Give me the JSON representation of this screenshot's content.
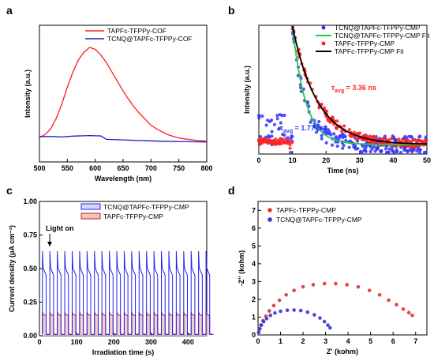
{
  "chart_data": [
    {
      "panel": "a",
      "type": "line",
      "xlabel": "Wavelength (nm)",
      "ylabel": "Intensity (a.u.)",
      "xlim": [
        500,
        800
      ],
      "xticks": [
        "500",
        "550",
        "600",
        "650",
        "700",
        "750",
        "800"
      ],
      "legend_position": "top-right",
      "series": [
        {
          "name": "TAPFc-TFPPy-COF",
          "color": "#ff1a1a",
          "x": [
            500,
            510,
            520,
            530,
            540,
            550,
            560,
            570,
            580,
            590,
            600,
            610,
            620,
            630,
            640,
            650,
            660,
            670,
            680,
            690,
            700,
            710,
            720,
            730,
            740,
            750,
            760,
            770,
            780,
            790,
            800
          ],
          "y": [
            0.05,
            0.08,
            0.14,
            0.25,
            0.4,
            0.58,
            0.74,
            0.87,
            0.95,
            1.0,
            0.98,
            0.92,
            0.84,
            0.74,
            0.64,
            0.54,
            0.45,
            0.37,
            0.3,
            0.24,
            0.18,
            0.14,
            0.11,
            0.08,
            0.06,
            0.045,
            0.035,
            0.028,
            0.02,
            0.015,
            0.01
          ]
        },
        {
          "name": "TCNQ@TAPFc-TFPPy-COF",
          "color": "#1a1acc",
          "x": [
            500,
            510,
            520,
            530,
            540,
            550,
            560,
            570,
            580,
            590,
            600,
            610,
            620,
            630,
            640,
            650,
            660,
            670,
            680,
            690,
            700,
            710,
            720,
            730,
            740,
            750,
            760,
            770,
            780,
            790,
            800
          ],
          "y": [
            0.06,
            0.06,
            0.06,
            0.058,
            0.055,
            0.06,
            0.064,
            0.066,
            0.068,
            0.07,
            0.068,
            0.066,
            0.03,
            0.028,
            0.026,
            0.024,
            0.022,
            0.02,
            0.018,
            0.016,
            0.014,
            0.012,
            0.01,
            0.009,
            0.008,
            0.007,
            0.006,
            0.005,
            0.004,
            0.003,
            0.002
          ]
        }
      ]
    },
    {
      "panel": "b",
      "type": "scatter",
      "xlabel": "Time (ns)",
      "ylabel": "Intensity (a.u.)",
      "xlim": [
        0,
        50
      ],
      "xticks": [
        "0",
        "10",
        "20",
        "30",
        "40",
        "50"
      ],
      "legend_position": "top-right",
      "series": [
        {
          "name": "TCNQ@TAPFc-TFPPy-CMP",
          "kind": "points",
          "color": "#3333ff",
          "tau": 1.77
        },
        {
          "name": "TCNQ@TAPFc-TFPPy-CMP Fit",
          "kind": "line",
          "color": "#22cc44",
          "tau": 1.77
        },
        {
          "name": "TAPFc-TFPPy-CMP",
          "kind": "points",
          "color": "#ff2222",
          "tau": 3.36
        },
        {
          "name": "TAPFc-TFPPy-CMP Fit",
          "kind": "line",
          "color": "#000000",
          "tau": 3.36
        }
      ],
      "annotations": [
        {
          "text_pre": "τ",
          "sub": "avg",
          "text_post": " = 3.36 ns",
          "color": "#ff2222"
        },
        {
          "text_pre": "τ",
          "sub": "avg",
          "text_post": " = 1.77 ns",
          "color": "#3333ff"
        }
      ]
    },
    {
      "panel": "c",
      "type": "line",
      "xlabel": "Irradiation time (s)",
      "ylabel": "Current density (μA cm⁻²)",
      "xlim": [
        0,
        450
      ],
      "ylim": [
        0.0,
        1.0
      ],
      "xticks": [
        "0",
        "100",
        "200",
        "300",
        "400"
      ],
      "yticks": [
        "0.00",
        "0.25",
        "0.50",
        "0.75",
        "1.00"
      ],
      "legend_position": "top-right",
      "annotation": "Light on",
      "pulse_period_s": 20,
      "series": [
        {
          "name": "TCNQ@TAPFc-TFPPy-CMP",
          "color": "#2222ee",
          "on_value": 0.45,
          "peak": 0.63,
          "off_value": 0.01
        },
        {
          "name": "TAPFc-TFPPy-CMP",
          "color": "#bb2222",
          "on_value": 0.15,
          "peak": 0.18,
          "off_value": 0.01
        }
      ]
    },
    {
      "panel": "d",
      "type": "scatter",
      "xlabel": "Z' (kohm)",
      "ylabel": "-Z'' (kohm)",
      "xlim": [
        0,
        7.5
      ],
      "ylim": [
        0,
        7.5
      ],
      "xticks": [
        "0",
        "1",
        "2",
        "3",
        "4",
        "5",
        "6",
        "7"
      ],
      "yticks": [
        "0",
        "1",
        "2",
        "3",
        "4",
        "5",
        "6",
        "7"
      ],
      "legend_position": "top-left",
      "series": [
        {
          "name": "TAPFc-TFPPy-CMP",
          "color": "#dd3333",
          "x": [
            0.05,
            0.12,
            0.22,
            0.35,
            0.5,
            0.7,
            0.95,
            1.25,
            1.6,
            2.0,
            2.45,
            2.95,
            3.45,
            3.95,
            4.45,
            4.95,
            5.4,
            5.8,
            6.15,
            6.45,
            6.7,
            6.85
          ],
          "y": [
            0.3,
            0.55,
            0.8,
            1.05,
            1.35,
            1.65,
            1.95,
            2.25,
            2.5,
            2.7,
            2.82,
            2.88,
            2.88,
            2.82,
            2.7,
            2.5,
            2.25,
            1.95,
            1.7,
            1.45,
            1.25,
            1.1
          ]
        },
        {
          "name": "TCNQ@TAPFc-TFPPy-CMP",
          "color": "#3333dd",
          "x": [
            0.03,
            0.08,
            0.15,
            0.25,
            0.38,
            0.55,
            0.75,
            1.0,
            1.3,
            1.6,
            1.9,
            2.2,
            2.5,
            2.75,
            2.95,
            3.1,
            3.2
          ],
          "y": [
            0.15,
            0.35,
            0.55,
            0.75,
            0.92,
            1.1,
            1.23,
            1.33,
            1.39,
            1.4,
            1.37,
            1.28,
            1.13,
            0.95,
            0.75,
            0.55,
            0.4
          ]
        }
      ]
    }
  ]
}
